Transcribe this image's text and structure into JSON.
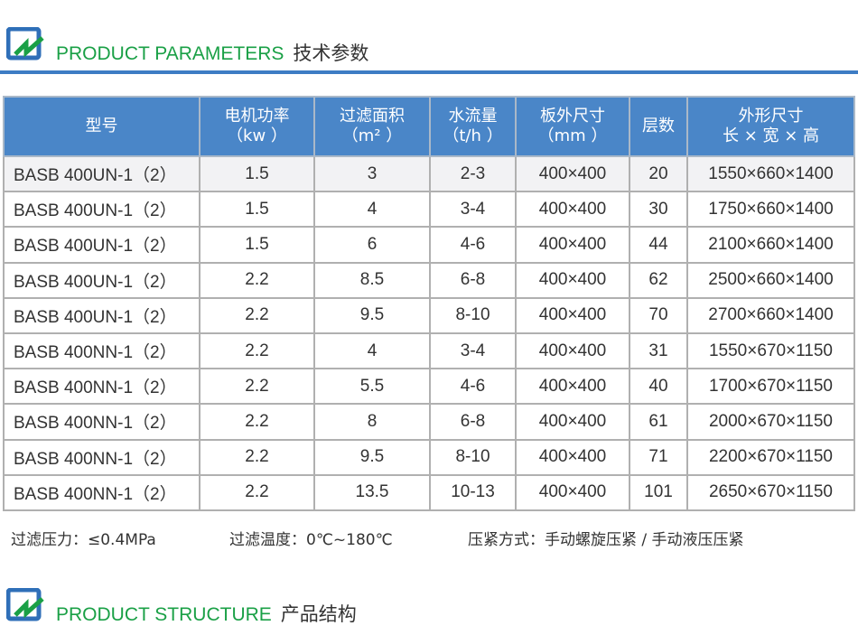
{
  "sections": [
    {
      "en": "PRODUCT PARAMETERS",
      "cn": "技术参数"
    },
    {
      "en": "PRODUCT STRUCTURE",
      "cn": "产品结构"
    }
  ],
  "colors": {
    "accent_blue": "#4a86c8",
    "accent_green": "#1aa046"
  },
  "table": {
    "headers": [
      {
        "l1": "型号",
        "l2": ""
      },
      {
        "l1": "电机功率",
        "l2": "（kw ）"
      },
      {
        "l1": "过滤面积",
        "l2": "（m² ）"
      },
      {
        "l1": "水流量",
        "l2": "（t/h ）"
      },
      {
        "l1": "板外尺寸",
        "l2": "（mm ）"
      },
      {
        "l1": "层数",
        "l2": ""
      },
      {
        "l1": "外形尺寸",
        "l2": "长 × 宽 × 高"
      }
    ],
    "rows": [
      [
        "BASB 400UN-1（2）",
        "1.5",
        "3",
        "2-3",
        "400×400",
        "20",
        "1550×660×1400"
      ],
      [
        "BASB 400UN-1（2）",
        "1.5",
        "4",
        "3-4",
        "400×400",
        "30",
        "1750×660×1400"
      ],
      [
        "BASB 400UN-1（2）",
        "1.5",
        "6",
        "4-6",
        "400×400",
        "44",
        "2100×660×1400"
      ],
      [
        "BASB 400UN-1（2）",
        "2.2",
        "8.5",
        "6-8",
        "400×400",
        "62",
        "2500×660×1400"
      ],
      [
        "BASB 400UN-1（2）",
        "2.2",
        "9.5",
        "8-10",
        "400×400",
        "70",
        "2700×660×1400"
      ],
      [
        "BASB 400NN-1（2）",
        "2.2",
        "4",
        "3-4",
        "400×400",
        "31",
        "1550×670×1150"
      ],
      [
        "BASB 400NN-1（2）",
        "2.2",
        "5.5",
        "4-6",
        "400×400",
        "40",
        "1700×670×1150"
      ],
      [
        "BASB 400NN-1（2）",
        "2.2",
        "8",
        "6-8",
        "400×400",
        "61",
        "2000×670×1150"
      ],
      [
        "BASB 400NN-1（2）",
        "2.2",
        "9.5",
        "8-10",
        "400×400",
        "71",
        "2200×670×1150"
      ],
      [
        "BASB 400NN-1（2）",
        "2.2",
        "13.5",
        "10-13",
        "400×400",
        "101",
        "2650×670×1150"
      ]
    ]
  },
  "notes": [
    "过滤压力：≤0.4MPa",
    "过滤温度：0℃~180℃",
    "压紧方式：手动螺旋压紧 / 手动液压压紧"
  ]
}
